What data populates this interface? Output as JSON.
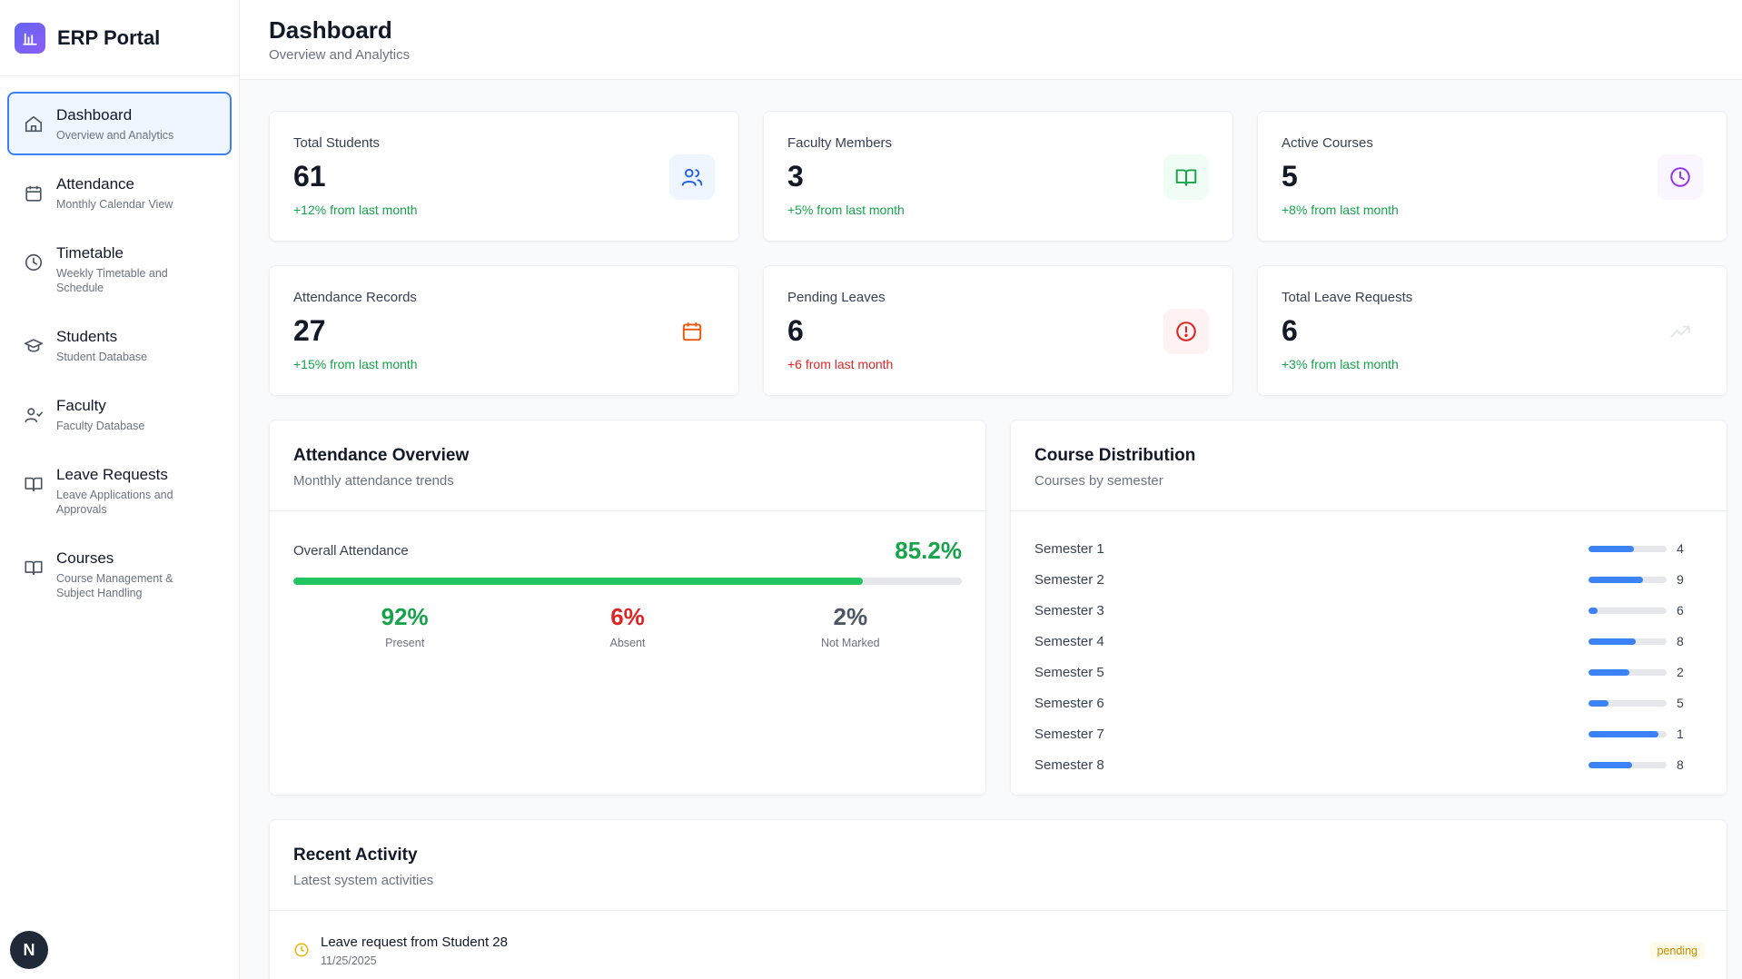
{
  "app": {
    "title": "ERP Portal"
  },
  "sidebar": {
    "items": [
      {
        "label": "Dashboard",
        "sub": "Overview and Analytics",
        "active": true,
        "icon": "home-icon"
      },
      {
        "label": "Attendance",
        "sub": "Monthly Calendar View",
        "icon": "calendar-icon"
      },
      {
        "label": "Timetable",
        "sub": "Weekly Timetable and Schedule",
        "icon": "clock-icon"
      },
      {
        "label": "Students",
        "sub": "Student Database",
        "icon": "graduation-cap-icon"
      },
      {
        "label": "Faculty",
        "sub": "Faculty Database",
        "icon": "user-check-icon"
      },
      {
        "label": "Leave Requests",
        "sub": "Leave Applications and Approvals",
        "icon": "book-open-icon"
      },
      {
        "label": "Courses",
        "sub": "Course Management & Subject Handling",
        "icon": "book-icon"
      }
    ],
    "avatar": "N"
  },
  "header": {
    "title": "Dashboard",
    "subtitle": "Overview and Analytics"
  },
  "stats": [
    {
      "label": "Total Students",
      "value": "61",
      "change": "+12% from last month",
      "icon": "users-icon",
      "tone": "green"
    },
    {
      "label": "Faculty Members",
      "value": "3",
      "change": "+5% from last month",
      "icon": "book-open-icon",
      "tone": "green"
    },
    {
      "label": "Active Courses",
      "value": "5",
      "change": "+8% from last month",
      "icon": "clock-icon",
      "tone": "green"
    },
    {
      "label": "Attendance Records",
      "value": "27",
      "change": "+15% from last month",
      "icon": "calendar-icon",
      "tone": "green"
    },
    {
      "label": "Pending Leaves",
      "value": "6",
      "change": "+6 from last month",
      "icon": "alert-circle-icon",
      "tone": "red"
    },
    {
      "label": "Total Leave Requests",
      "value": "6",
      "change": "+3% from last month",
      "icon": "trending-up-icon",
      "tone": "green"
    }
  ],
  "attendance": {
    "title": "Attendance Overview",
    "subtitle": "Monthly attendance trends",
    "overall_label": "Overall Attendance",
    "overall_value": "85.2%",
    "overall_fraction": 0.852,
    "present": {
      "value": "92%",
      "label": "Present"
    },
    "absent": {
      "value": "6%",
      "label": "Absent"
    },
    "not_marked": {
      "value": "2%",
      "label": "Not Marked"
    }
  },
  "distribution": {
    "title": "Course Distribution",
    "subtitle": "Courses by semester",
    "rows": [
      {
        "name": "Semester 1",
        "count": "4",
        "fraction": 0.58
      },
      {
        "name": "Semester 2",
        "count": "9",
        "fraction": 0.7
      },
      {
        "name": "Semester 3",
        "count": "6",
        "fraction": 0.12
      },
      {
        "name": "Semester 4",
        "count": "8",
        "fraction": 0.6
      },
      {
        "name": "Semester 5",
        "count": "2",
        "fraction": 0.52
      },
      {
        "name": "Semester 6",
        "count": "5",
        "fraction": 0.25
      },
      {
        "name": "Semester 7",
        "count": "1",
        "fraction": 0.9
      },
      {
        "name": "Semester 8",
        "count": "8",
        "fraction": 0.56
      }
    ]
  },
  "recent": {
    "title": "Recent Activity",
    "subtitle": "Latest system activities",
    "items": [
      {
        "title": "Leave request from Student 28",
        "date": "11/25/2025",
        "status": "pending"
      }
    ]
  },
  "colors": {
    "accent": "#3b82f6",
    "success": "#16a34a",
    "danger": "#dc2626",
    "warning": "#ca8a04"
  }
}
